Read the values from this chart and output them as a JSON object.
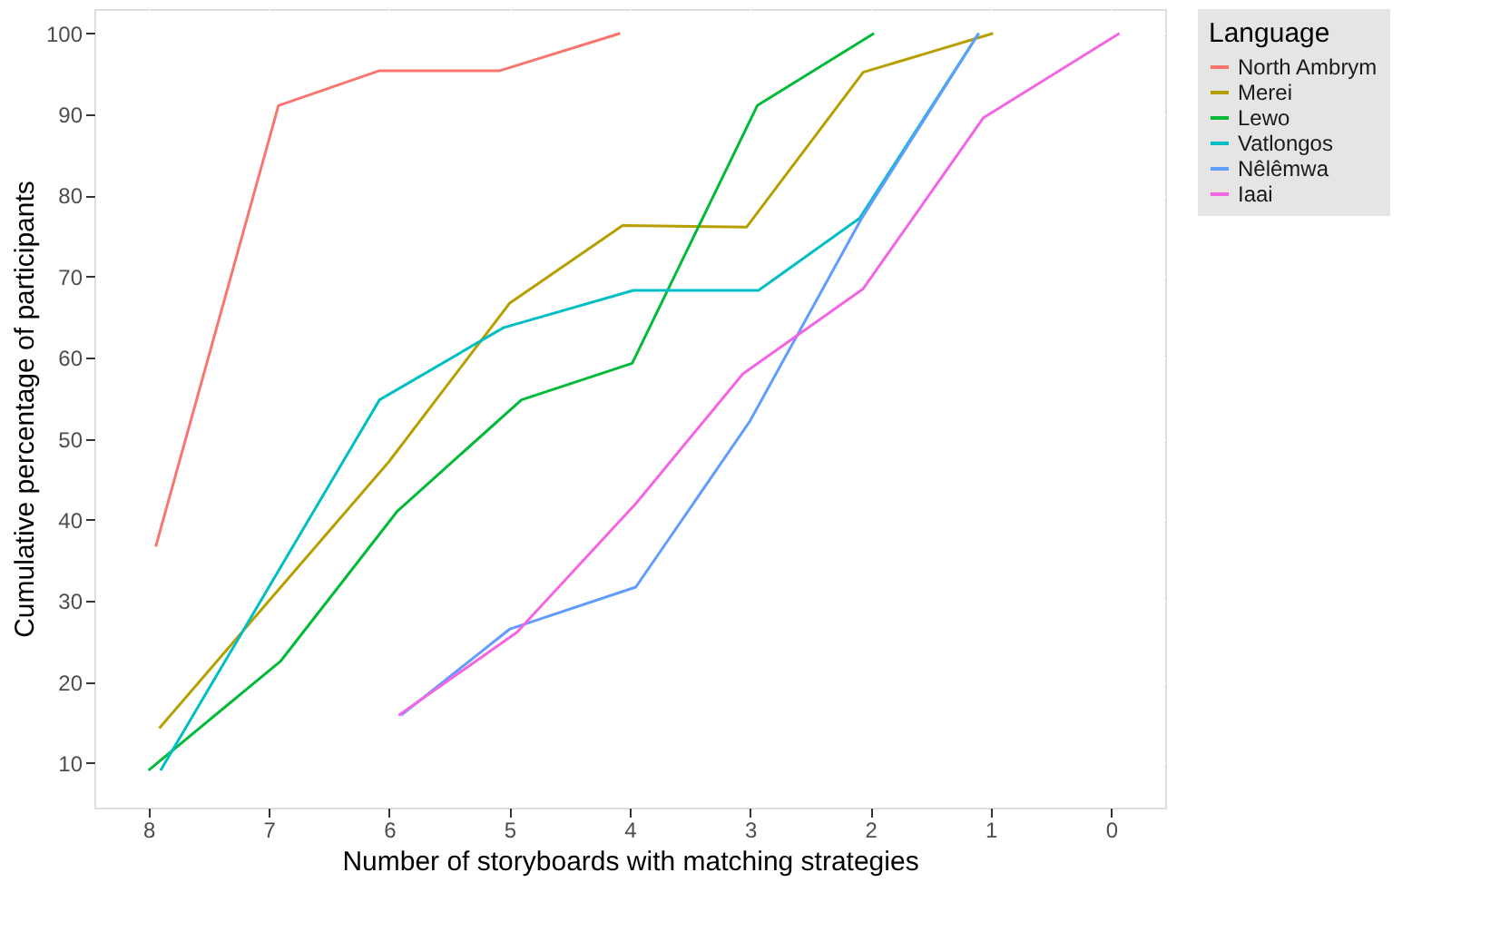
{
  "chart_data": {
    "type": "line",
    "xlabel": "Number of storyboards with matching strategies",
    "ylabel": "Cumulative percentage of participants",
    "legend_title": "Language",
    "legend": "right",
    "grid": true,
    "line_style": "solid",
    "marker": "none",
    "xlim": [
      8.45,
      -0.45
    ],
    "xticks": [
      8,
      7,
      6,
      5,
      4,
      3,
      2,
      1,
      0
    ],
    "ylim": [
      4.5,
      103
    ],
    "yticks": [
      10,
      20,
      30,
      40,
      50,
      60,
      70,
      80,
      90,
      100
    ],
    "series": [
      {
        "name": "North Ambrym",
        "color": "#f8766d",
        "x": [
          7.94,
          6.92,
          6.08,
          5.08,
          4.08
        ],
        "values": [
          36.7,
          91.1,
          95.4,
          95.4,
          100
        ]
      },
      {
        "name": "Merei",
        "color": "#b79f00",
        "x": [
          7.91,
          7.0,
          6.0,
          5.0,
          4.06,
          3.03,
          2.06,
          0.98
        ],
        "values": [
          14.3,
          30,
          47.2,
          66.7,
          76.3,
          76.1,
          95.2,
          100
        ]
      },
      {
        "name": "Lewo",
        "color": "#00ba38",
        "x": [
          8.0,
          6.9,
          5.93,
          4.9,
          3.98,
          2.94,
          1.97
        ],
        "values": [
          9.1,
          22.6,
          41.1,
          54.8,
          59.3,
          91.1,
          100
        ]
      },
      {
        "name": "Vatlongos",
        "color": "#00bfc4",
        "x": [
          7.9,
          6.08,
          5.05,
          3.97,
          2.93,
          2.09,
          1.1
        ],
        "values": [
          9.1,
          54.8,
          63.7,
          68.3,
          68.3,
          77.2,
          100
        ]
      },
      {
        "name": "Nêlêmwa",
        "color": "#619cff",
        "x": [
          5.9,
          5.0,
          3.95,
          3.0,
          2.08,
          1.1
        ],
        "values": [
          15.9,
          26.5,
          31.7,
          52.2,
          77,
          100
        ]
      },
      {
        "name": "Iaai",
        "color": "#f564e3",
        "x": [
          5.92,
          4.94,
          3.95,
          3.06,
          2.06,
          1.06,
          -0.07
        ],
        "values": [
          15.9,
          26.1,
          42,
          58,
          68.5,
          89.6,
          100
        ]
      }
    ]
  }
}
